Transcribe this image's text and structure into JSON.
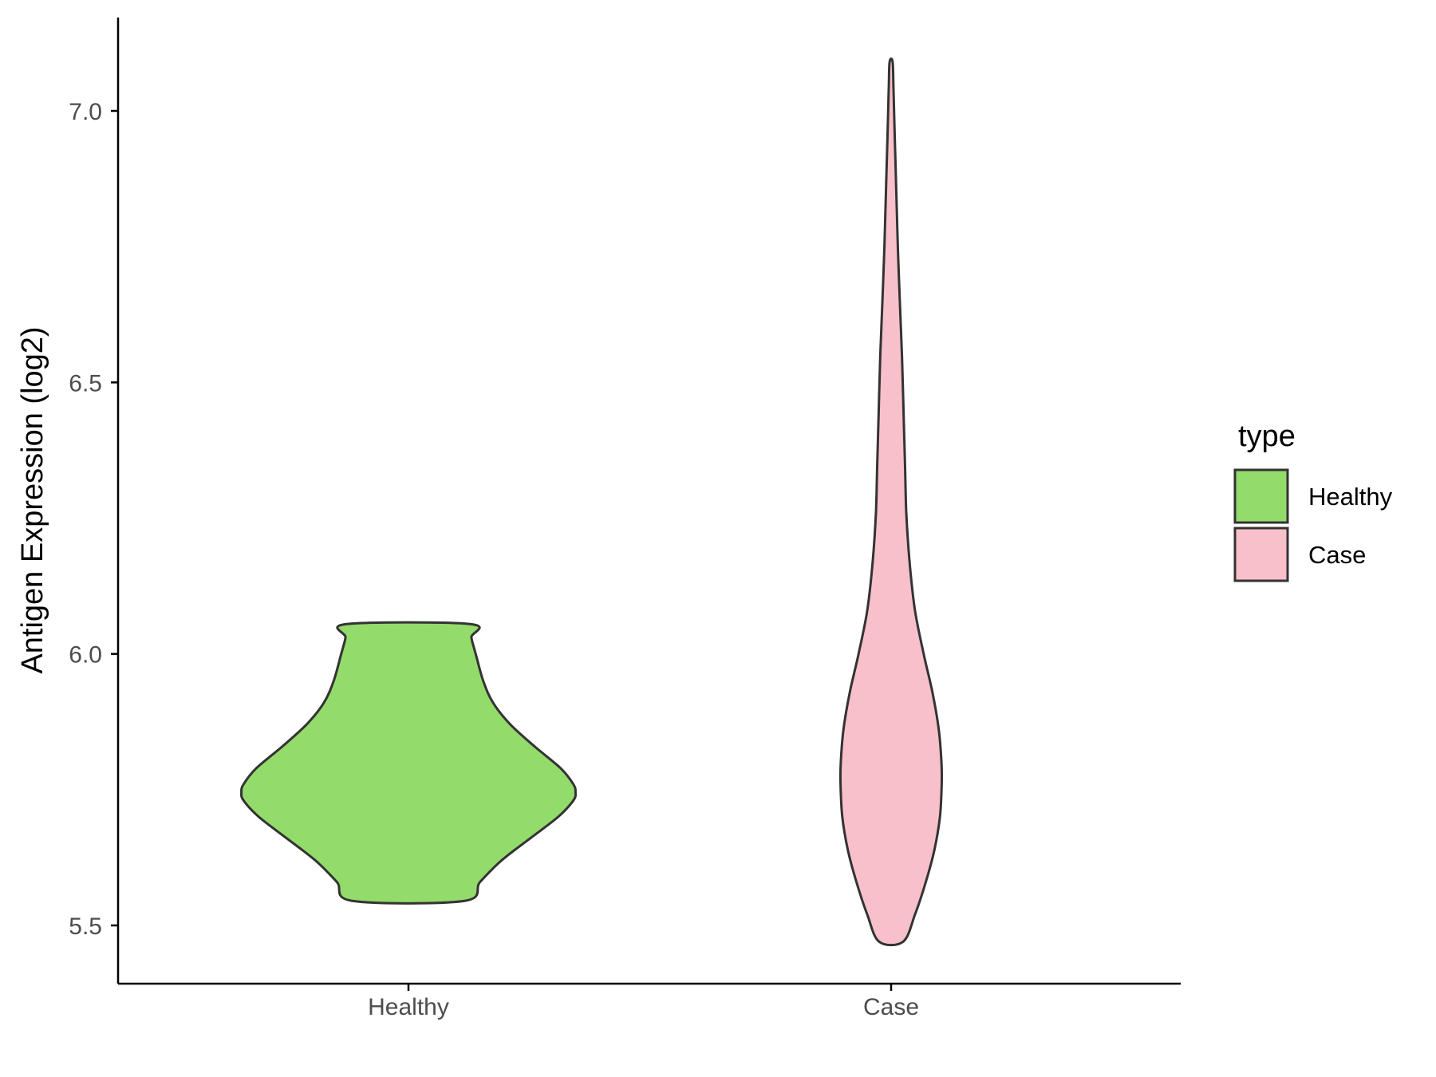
{
  "chart_data": {
    "type": "violin",
    "title": "",
    "xlabel": "",
    "ylabel": "Antigen Expression (log2)",
    "ylim": [
      5.39,
      7.17
    ],
    "yticks": [
      5.5,
      6.0,
      6.5,
      7.0
    ],
    "ytick_labels": [
      "5.5",
      "6.0",
      "6.5",
      "7.0"
    ],
    "categories": [
      "Healthy",
      "Case"
    ],
    "grid": false,
    "legend": {
      "title": "type",
      "position": "right",
      "entries": [
        {
          "label": "Healthy",
          "color": "#93DB6A"
        },
        {
          "label": "Case",
          "color": "#F8C0CB"
        }
      ]
    },
    "series": [
      {
        "category": "Healthy",
        "color": "#93DB6A",
        "min": 5.545,
        "max": 6.055,
        "density": [
          [
            5.545,
            0.255
          ],
          [
            5.58,
            0.33
          ],
          [
            5.62,
            0.43
          ],
          [
            5.66,
            0.56
          ],
          [
            5.7,
            0.69
          ],
          [
            5.73,
            0.76
          ],
          [
            5.745,
            0.77
          ],
          [
            5.76,
            0.76
          ],
          [
            5.79,
            0.7
          ],
          [
            5.83,
            0.58
          ],
          [
            5.87,
            0.47
          ],
          [
            5.91,
            0.39
          ],
          [
            5.95,
            0.345
          ],
          [
            6.0,
            0.31
          ],
          [
            6.03,
            0.29
          ],
          [
            6.055,
            0.285
          ]
        ]
      },
      {
        "category": "Case",
        "color": "#F8C0CB",
        "min": 5.47,
        "max": 7.09,
        "density": [
          [
            5.47,
            0.055
          ],
          [
            5.52,
            0.11
          ],
          [
            5.58,
            0.16
          ],
          [
            5.64,
            0.2
          ],
          [
            5.7,
            0.225
          ],
          [
            5.76,
            0.233
          ],
          [
            5.8,
            0.232
          ],
          [
            5.86,
            0.22
          ],
          [
            5.93,
            0.19
          ],
          [
            6.0,
            0.15
          ],
          [
            6.08,
            0.11
          ],
          [
            6.17,
            0.085
          ],
          [
            6.26,
            0.07
          ],
          [
            6.35,
            0.064
          ],
          [
            6.45,
            0.057
          ],
          [
            6.55,
            0.05
          ],
          [
            6.65,
            0.04
          ],
          [
            6.75,
            0.031
          ],
          [
            6.85,
            0.024
          ],
          [
            6.95,
            0.017
          ],
          [
            7.04,
            0.011
          ],
          [
            7.09,
            0.007
          ]
        ]
      }
    ]
  }
}
